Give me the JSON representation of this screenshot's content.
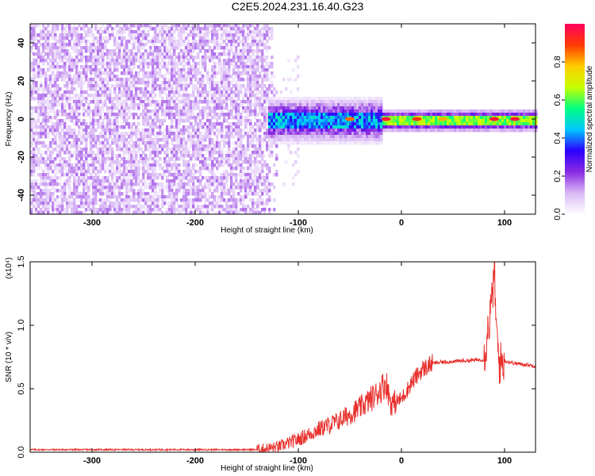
{
  "title": "C2E5.2024.231.16.40.G23",
  "chart_data": [
    {
      "type": "heatmap",
      "xlabel": "Height of straight line (km)",
      "ylabel": "Frequency (Hz)",
      "xlim": [
        -360,
        130
      ],
      "ylim": [
        -50,
        50
      ],
      "x_ticks": [
        -300,
        -200,
        -100,
        0,
        100
      ],
      "y_ticks": [
        -40,
        -20,
        0,
        20,
        40
      ],
      "colorbar": {
        "label": "Normalized spectral amplitude",
        "range": [
          0.0,
          1.0
        ],
        "ticks": [
          "0.0",
          "0.2",
          "0.4",
          "0.6",
          "0.8"
        ],
        "colormap": [
          "#ffffff",
          "#d9b8f5",
          "#8a2be2",
          "#2b00ff",
          "#00c8ff",
          "#00ff80",
          "#c8ff00",
          "#ffcc00",
          "#ff3b00",
          "#ff0060"
        ]
      },
      "noise_region": {
        "x_range": [
          -360,
          -120
        ],
        "amplitude": 0.15
      },
      "carrier_band": {
        "frequency": 0,
        "x_range": [
          -130,
          130
        ],
        "half_width_hz": 3
      }
    },
    {
      "type": "line",
      "xlabel": "Height of straight line (km)",
      "ylabel": "SNR (10 * v/v)",
      "y_scale_label": "(x10⁴)",
      "xlim": [
        -360,
        130
      ],
      "ylim": [
        0,
        1.5
      ],
      "x_ticks": [
        -300,
        -200,
        -100,
        0,
        100
      ],
      "y_ticks": [
        "0.0",
        "0.5",
        "1.0",
        "1.5"
      ],
      "color": "#e8302c",
      "series": [
        {
          "x": [
            -360,
            -300,
            -200,
            -140,
            -120,
            -100,
            -80,
            -60,
            -40,
            -25,
            -15,
            -10,
            0,
            10,
            20,
            30,
            40,
            60,
            80,
            88,
            90,
            92,
            95,
            100,
            110,
            120,
            130
          ],
          "y": [
            0.02,
            0.02,
            0.02,
            0.02,
            0.04,
            0.1,
            0.18,
            0.25,
            0.35,
            0.45,
            0.55,
            0.38,
            0.42,
            0.55,
            0.65,
            0.7,
            0.71,
            0.72,
            0.73,
            1.2,
            1.48,
            0.95,
            0.7,
            0.72,
            0.7,
            0.69,
            0.68
          ]
        }
      ]
    }
  ]
}
